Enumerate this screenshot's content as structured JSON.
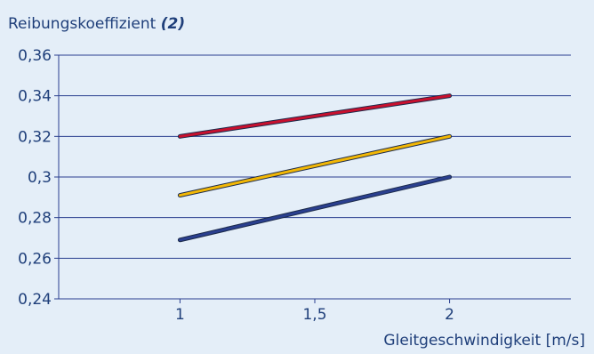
{
  "chart_data": {
    "type": "line",
    "title": "Reibungskoeffizient",
    "title_suffix": "(2)",
    "xlabel": "Gleitgeschwindigkeit [m/s]",
    "ylabel": "",
    "xlim": [
      0.55,
      2.45
    ],
    "ylim": [
      0.24,
      0.36
    ],
    "x_ticks": [
      1,
      1.5,
      2
    ],
    "x_tick_labels": [
      "1",
      "1,5",
      "2"
    ],
    "y_ticks": [
      0.24,
      0.26,
      0.28,
      0.3,
      0.32,
      0.34,
      0.36
    ],
    "y_tick_labels": [
      "0,24",
      "0,26",
      "0,28",
      "0,3",
      "0,32",
      "0,34",
      "0,36"
    ],
    "grid": "horizontal",
    "legend": "none",
    "series": [
      {
        "x": [
          1,
          2
        ],
        "values": [
          0.32,
          0.34
        ],
        "color": "#c8102e"
      },
      {
        "x": [
          1,
          2
        ],
        "values": [
          0.291,
          0.32
        ],
        "color": "#f2b705"
      },
      {
        "x": [
          1,
          2
        ],
        "values": [
          0.269,
          0.3
        ],
        "color": "#2a3f8f"
      }
    ]
  }
}
